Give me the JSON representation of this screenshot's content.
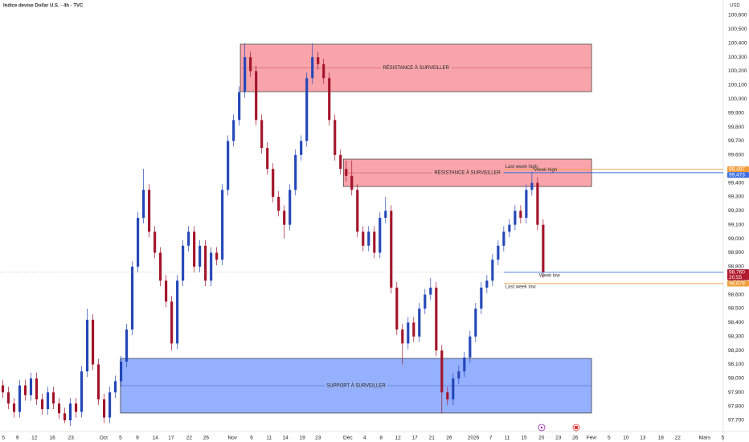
{
  "chart_data": {
    "type": "candlestick",
    "title": "Indice devise Dollar U.S. · 4h · TVC",
    "currency": "USD",
    "up_color": "#2447b8",
    "down_color": "#a3142a",
    "grid": false,
    "xlim": [
      -0.5,
      128
    ],
    "ylim": [
      97610,
      100690
    ],
    "xticks": [
      {
        "value": 0.1,
        "label": "5"
      },
      {
        "value": 2.6,
        "label": "9"
      },
      {
        "value": 5.6,
        "label": "12"
      },
      {
        "value": 8.8,
        "label": "16"
      },
      {
        "value": 12.1,
        "label": "23"
      },
      {
        "value": 17.9,
        "label": "Oct"
      },
      {
        "value": 20.9,
        "label": "5"
      },
      {
        "value": 23.9,
        "label": "9"
      },
      {
        "value": 27.1,
        "label": "14"
      },
      {
        "value": 29.9,
        "label": "17"
      },
      {
        "value": 33.1,
        "label": "22"
      },
      {
        "value": 36.1,
        "label": "26"
      },
      {
        "value": 40.8,
        "label": "Nov"
      },
      {
        "value": 44.2,
        "label": "6"
      },
      {
        "value": 47.3,
        "label": "11"
      },
      {
        "value": 50.2,
        "label": "14"
      },
      {
        "value": 53.2,
        "label": "19"
      },
      {
        "value": 56.0,
        "label": "23"
      },
      {
        "value": 61.3,
        "label": "Déc"
      },
      {
        "value": 64.3,
        "label": "4"
      },
      {
        "value": 67.2,
        "label": "8"
      },
      {
        "value": 70.2,
        "label": "12"
      },
      {
        "value": 73.2,
        "label": "17"
      },
      {
        "value": 76.2,
        "label": "21"
      },
      {
        "value": 79.3,
        "label": "26"
      },
      {
        "value": 83.6,
        "label": "2026"
      },
      {
        "value": 86.7,
        "label": "7"
      },
      {
        "value": 89.6,
        "label": "11"
      },
      {
        "value": 92.6,
        "label": "15"
      },
      {
        "value": 95.7,
        "label": "20"
      },
      {
        "value": 98.7,
        "label": "23"
      },
      {
        "value": 101.7,
        "label": "26"
      },
      {
        "value": 104.6,
        "label": "Févr"
      },
      {
        "value": 107.7,
        "label": "5"
      },
      {
        "value": 110.7,
        "label": "10"
      },
      {
        "value": 113.7,
        "label": "13"
      },
      {
        "value": 116.9,
        "label": "18"
      },
      {
        "value": 119.9,
        "label": "22"
      },
      {
        "value": 124.7,
        "label": "Mars"
      },
      {
        "value": 127.9,
        "label": "5"
      }
    ],
    "yticks": [
      {
        "value": 100600,
        "label": "100,600"
      },
      {
        "value": 100500,
        "label": "100,500"
      },
      {
        "value": 100400,
        "label": "100,400"
      },
      {
        "value": 100300,
        "label": "100,300"
      },
      {
        "value": 100200,
        "label": "100,200"
      },
      {
        "value": 100100,
        "label": "100,100"
      },
      {
        "value": 100000,
        "label": "100,000"
      },
      {
        "value": 99900,
        "label": "99,900"
      },
      {
        "value": 99800,
        "label": "99,800"
      },
      {
        "value": 99700,
        "label": "99,700"
      },
      {
        "value": 99600,
        "label": "99,600"
      },
      {
        "value": 99500,
        "label": "99,500"
      },
      {
        "value": 99400,
        "label": "99,400"
      },
      {
        "value": 99300,
        "label": "99,300"
      },
      {
        "value": 99200,
        "label": "99,200"
      },
      {
        "value": 99100,
        "label": "99,100"
      },
      {
        "value": 99000,
        "label": "99,000"
      },
      {
        "value": 98900,
        "label": "98,900"
      },
      {
        "value": 98800,
        "label": "98,800"
      },
      {
        "value": 98700,
        "label": "98,700"
      },
      {
        "value": 98600,
        "label": "98,600"
      },
      {
        "value": 98500,
        "label": "98,500"
      },
      {
        "value": 98400,
        "label": "98,400"
      },
      {
        "value": 98300,
        "label": "98,300"
      },
      {
        "value": 98200,
        "label": "98,200"
      },
      {
        "value": 98100,
        "label": "98,100"
      },
      {
        "value": 98000,
        "label": "98,000"
      },
      {
        "value": 97900,
        "label": "97,900"
      },
      {
        "value": 97800,
        "label": "97,800"
      },
      {
        "value": 97700,
        "label": "97,700"
      }
    ],
    "open": [
      97950,
      97900,
      97820,
      97760,
      97950,
      97880,
      98000,
      97850,
      97780,
      97900,
      97820,
      97750,
      97700,
      97820,
      97760,
      98050,
      98420,
      98100,
      97850,
      97720,
      97900,
      97980,
      98120,
      98350,
      98800,
      99150,
      99350,
      99050,
      98900,
      98700,
      98550,
      98250,
      98700,
      98950,
      99050,
      98800,
      98950,
      98700,
      98900,
      98850,
      99350,
      99700,
      99850,
      100050,
      100300,
      100200,
      99850,
      99650,
      99500,
      99300,
      99200,
      99100,
      99350,
      99600,
      99700,
      100150,
      100300,
      100250,
      100150,
      99850,
      99600,
      99500,
      99450,
      99350,
      99050,
      98950,
      99050,
      98900,
      99150,
      99200,
      98650,
      98350,
      98250,
      98400,
      98300,
      98500,
      98600,
      98650,
      98200,
      97900,
      97850,
      98000,
      98050,
      98150,
      98300,
      98500,
      98650,
      98700,
      98850,
      98950,
      99050,
      99100,
      99200,
      99150,
      99350,
      99400,
      99100
    ],
    "high": [
      97990,
      97940,
      97860,
      97990,
      97990,
      98040,
      98040,
      97890,
      97940,
      97940,
      97860,
      97790,
      97860,
      97860,
      98090,
      98500,
      98460,
      98140,
      97890,
      97940,
      98020,
      98160,
      98390,
      98840,
      99190,
      99500,
      99390,
      99090,
      98940,
      98740,
      98590,
      98740,
      98990,
      99090,
      99090,
      98990,
      98990,
      98940,
      98940,
      99390,
      99740,
      99890,
      100090,
      100400,
      100340,
      100240,
      99890,
      99690,
      99540,
      99340,
      99240,
      99390,
      99640,
      99740,
      100190,
      100400,
      100340,
      100290,
      100190,
      99890,
      99640,
      99560,
      99560,
      99390,
      99090,
      99090,
      99090,
      99190,
      99300,
      99240,
      98690,
      98390,
      98440,
      98440,
      98540,
      98640,
      98720,
      98690,
      98240,
      97940,
      98040,
      98090,
      98190,
      98340,
      98540,
      98690,
      98740,
      98890,
      98990,
      99090,
      99140,
      99240,
      99240,
      99390,
      99480,
      99440,
      99140
    ],
    "low": [
      97860,
      97780,
      97720,
      97720,
      97840,
      97840,
      97810,
      97740,
      97740,
      97780,
      97710,
      97680,
      97660,
      97720,
      97720,
      98010,
      98060,
      97810,
      97680,
      97680,
      97860,
      97940,
      98080,
      98310,
      98760,
      99110,
      99010,
      98860,
      98660,
      98510,
      98200,
      98210,
      98660,
      98910,
      98760,
      98760,
      98660,
      98660,
      98810,
      98810,
      99310,
      99660,
      99810,
      100010,
      100160,
      99810,
      99610,
      99460,
      99260,
      99160,
      99000,
      99060,
      99310,
      99560,
      99660,
      100110,
      100210,
      100110,
      99810,
      99560,
      99460,
      99410,
      99310,
      99010,
      98910,
      98910,
      98860,
      98860,
      99110,
      98610,
      98310,
      98100,
      98210,
      98260,
      98260,
      98460,
      98560,
      98160,
      97750,
      97810,
      97810,
      97960,
      98010,
      98110,
      98260,
      98460,
      98610,
      98660,
      98810,
      98910,
      99010,
      99060,
      99110,
      99110,
      99310,
      99060,
      98720
    ],
    "close": [
      97900,
      97820,
      97760,
      97950,
      97880,
      98000,
      97850,
      97780,
      97900,
      97820,
      97750,
      97700,
      97820,
      97760,
      98050,
      98420,
      98100,
      97850,
      97720,
      97900,
      97980,
      98120,
      98350,
      98800,
      99150,
      99350,
      99050,
      98900,
      98700,
      98550,
      98250,
      98700,
      98950,
      99050,
      98800,
      98950,
      98700,
      98900,
      98850,
      99350,
      99700,
      99850,
      100050,
      100300,
      100200,
      99850,
      99650,
      99500,
      99300,
      99200,
      99100,
      99350,
      99600,
      99700,
      100150,
      100300,
      100250,
      100150,
      99850,
      99600,
      99500,
      99450,
      99350,
      99050,
      98950,
      99050,
      98900,
      99150,
      99200,
      98650,
      98350,
      98250,
      98400,
      98300,
      98500,
      98600,
      98650,
      98200,
      97900,
      97850,
      98000,
      98050,
      98150,
      98300,
      98500,
      98650,
      98700,
      98850,
      98950,
      99050,
      99100,
      99200,
      99150,
      99350,
      99400,
      99100,
      98760
    ],
    "zones": [
      {
        "name": "RÉSISTANCE À SURVEILLER",
        "kind": "resistance",
        "ymin": 100053,
        "ymax": 100393,
        "x_start": 42.2,
        "x_end": 104.6
      },
      {
        "name": "RÉSISTANCE À SURVEILLER",
        "kind": "resistance",
        "ymin": 99374,
        "ymax": 99570,
        "x_start": 60.5,
        "x_end": 104.6
      },
      {
        "name": "SUPPORT À SURVEILLER",
        "kind": "support",
        "ymin": 97752,
        "ymax": 98143,
        "x_start": 20.9,
        "x_end": 104.6
      }
    ],
    "levels": [
      {
        "name": "Last week high",
        "value": 99497,
        "value_label": "99,497",
        "color": "#f29d38",
        "x_start": 89.0,
        "label_side": "above"
      },
      {
        "name": "Week high",
        "value": 99473,
        "value_label": "99,473",
        "color": "#3d6fe0",
        "x_start": 89.0,
        "label_side": "above"
      },
      {
        "name": "Week low",
        "value": 98760,
        "value_label": "98,760",
        "color": "#3d6fe0",
        "x_start": 89.0,
        "label_side": "below"
      },
      {
        "name": "Last week low",
        "value": 98679,
        "value_label": "98,679",
        "color": "#f29d38",
        "x_start": 89.0,
        "label_side": "below"
      }
    ],
    "last_price": {
      "value": 98760,
      "value_label": "98,760",
      "countdown": "20:55",
      "color": "#b2182b"
    }
  }
}
